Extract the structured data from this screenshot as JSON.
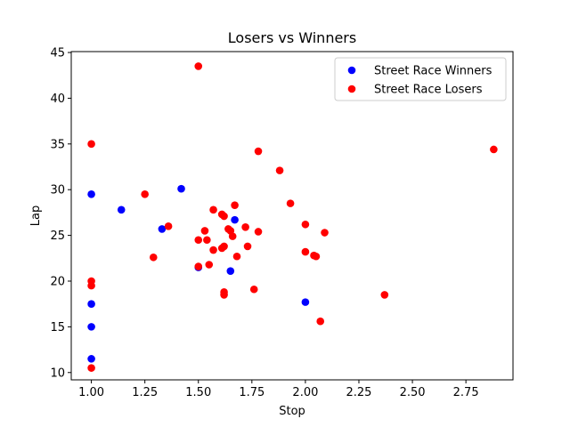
{
  "chart_data": {
    "type": "scatter",
    "title": "Losers vs Winners",
    "xlabel": "Stop",
    "ylabel": "Lap",
    "xlim": [
      0.906,
      2.97
    ],
    "ylim": [
      9.2,
      45.1
    ],
    "x_ticks": [
      1.0,
      1.25,
      1.5,
      1.75,
      2.0,
      2.25,
      2.5,
      2.75
    ],
    "x_tick_labels": [
      "1.00",
      "1.25",
      "1.50",
      "1.75",
      "2.00",
      "2.25",
      "2.50",
      "2.75"
    ],
    "y_ticks": [
      10,
      15,
      20,
      25,
      30,
      35,
      40,
      45
    ],
    "y_tick_labels": [
      "10",
      "15",
      "20",
      "25",
      "30",
      "35",
      "40",
      "45"
    ],
    "grid": false,
    "legend_position": "top-right",
    "series": [
      {
        "name": "Street Race Winners",
        "color": "#0000ff",
        "points": [
          [
            1.0,
            29.5
          ],
          [
            1.0,
            17.5
          ],
          [
            1.0,
            15.0
          ],
          [
            1.0,
            11.5
          ],
          [
            1.14,
            27.8
          ],
          [
            1.33,
            25.7
          ],
          [
            1.42,
            30.1
          ],
          [
            1.5,
            21.5
          ],
          [
            1.65,
            21.1
          ],
          [
            1.67,
            26.7
          ],
          [
            2.0,
            17.7
          ]
        ]
      },
      {
        "name": "Street Race Losers",
        "color": "#ff0000",
        "points": [
          [
            1.0,
            35.0
          ],
          [
            1.0,
            20.0
          ],
          [
            1.0,
            19.5
          ],
          [
            1.0,
            10.5
          ],
          [
            1.25,
            29.5
          ],
          [
            1.29,
            22.6
          ],
          [
            1.36,
            26.0
          ],
          [
            1.5,
            43.5
          ],
          [
            1.5,
            24.5
          ],
          [
            1.5,
            21.6
          ],
          [
            1.53,
            25.5
          ],
          [
            1.54,
            24.5
          ],
          [
            1.55,
            21.8
          ],
          [
            1.57,
            27.8
          ],
          [
            1.57,
            23.4
          ],
          [
            1.61,
            27.3
          ],
          [
            1.61,
            23.6
          ],
          [
            1.62,
            27.1
          ],
          [
            1.62,
            23.8
          ],
          [
            1.62,
            18.8
          ],
          [
            1.62,
            18.5
          ],
          [
            1.64,
            25.7
          ],
          [
            1.65,
            25.5
          ],
          [
            1.66,
            24.9
          ],
          [
            1.67,
            28.3
          ],
          [
            1.68,
            22.7
          ],
          [
            1.72,
            25.9
          ],
          [
            1.73,
            23.8
          ],
          [
            1.76,
            19.1
          ],
          [
            1.78,
            34.2
          ],
          [
            1.78,
            25.4
          ],
          [
            1.88,
            32.1
          ],
          [
            1.93,
            28.5
          ],
          [
            2.0,
            26.2
          ],
          [
            2.0,
            23.2
          ],
          [
            2.04,
            22.8
          ],
          [
            2.05,
            22.7
          ],
          [
            2.07,
            15.6
          ],
          [
            2.09,
            25.3
          ],
          [
            2.37,
            18.5
          ],
          [
            2.88,
            34.4
          ]
        ]
      }
    ]
  }
}
